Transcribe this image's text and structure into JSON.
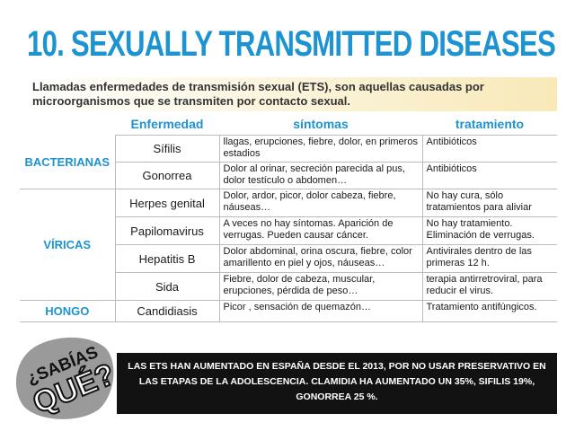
{
  "title": "10. SEXUALLY TRANSMITTED DISEASES",
  "intro": "Llamadas enfermedades de transmisión sexual (ETS), son aquellas causadas por microorganismos que se transmiten por contacto sexual.",
  "table": {
    "headers": [
      "Enfermedad",
      "síntomas",
      "tratamiento"
    ],
    "groups": [
      {
        "label": "BACTERIANAS",
        "rows": [
          {
            "name": "Sífilis",
            "sintomas": "llagas, erupciones, fiebre, dolor,  en primeros estadios",
            "tratamiento": "Antibióticos"
          },
          {
            "name": "Gonorrea",
            "sintomas": "Dolor al orinar, secreción parecida al pus, dolor testículo o abdomen…",
            "tratamiento": "Antibióticos"
          }
        ]
      },
      {
        "label": "VÍRICAS",
        "rows": [
          {
            "name": "Herpes genital",
            "sintomas": "Dolor, ardor, picor, dolor cabeza, fiebre, náuseas…",
            "tratamiento": "No hay cura, sólo tratamientos para aliviar"
          },
          {
            "name": "Papilomavirus",
            "sintomas": "A veces no hay síntomas. Aparición de verrugas. Pueden causar cáncer.",
            "tratamiento": "No hay tratamiento. Eliminación de verrugas."
          },
          {
            "name": "Hepatitis B",
            "sintomas": "Dolor abdominal, orina oscura, fiebre, color amarillento en piel y ojos, náuseas…",
            "tratamiento": "Antivirales dentro de las primeras 12 h."
          },
          {
            "name": "Sida",
            "sintomas": "Fiebre, dolor de cabeza, muscular, erupciones, pérdida de peso…",
            "tratamiento": "terapia antirretroviral, para reducir el virus."
          }
        ]
      },
      {
        "label": "HONGO",
        "rows": [
          {
            "name": "Candidiasis",
            "sintomas": "Picor , sensación de quemazón…",
            "tratamiento": "Tratamiento antifúngicos."
          }
        ]
      }
    ]
  },
  "badge": {
    "line1": "¿SABÍAS",
    "line2": "QUÉ?"
  },
  "banner": "LAS ETS HAN AUMENTADO EN ESPAÑA DESDE EL 2013, POR  NO USAR  PRESERVATIVO EN LAS ETAPAS DE LA ADOLESCENCIA. CLAMIDIA HA AUMENTADO UN 35%, SIFILIS 19%, GONORREA 25 %.",
  "colors": {
    "accent": "#1d93cf",
    "banner_bg": "#121212",
    "badge_bg": "#9a9a9a"
  }
}
